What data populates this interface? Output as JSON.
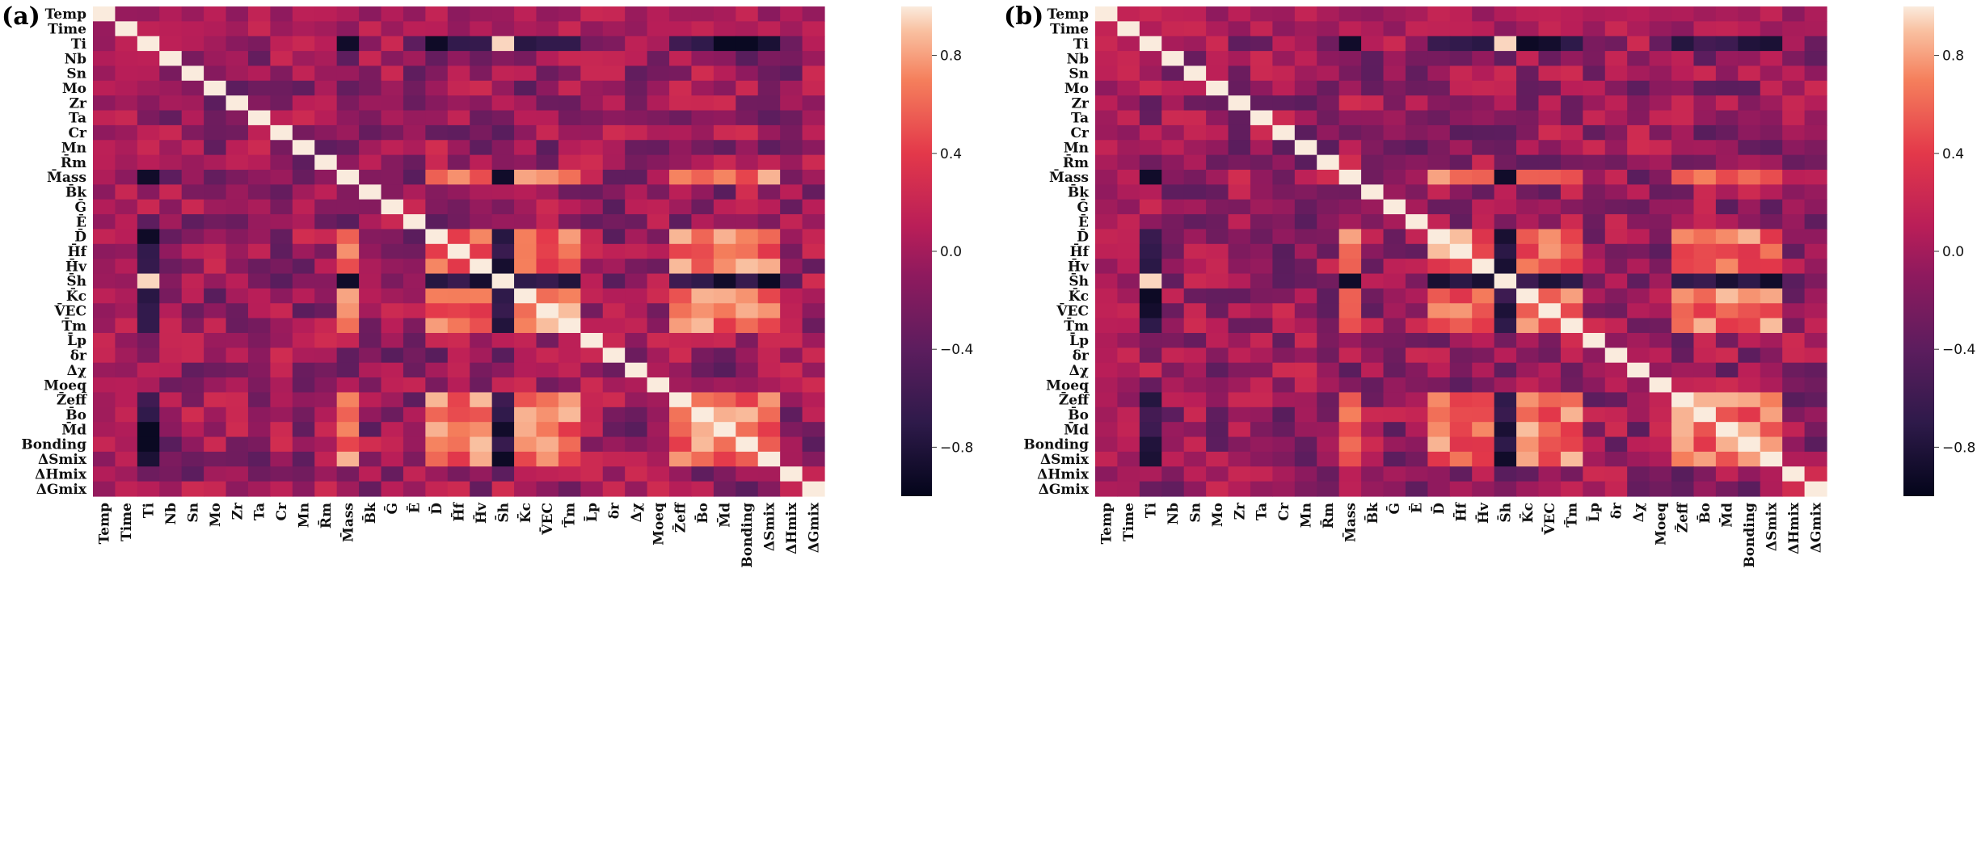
{
  "chart_data": [
    {
      "type": "heatmap",
      "panel_label": "(a)",
      "title": "",
      "rows": [
        "Temp",
        "Time",
        "Ti",
        "Nb",
        "Sn",
        "Mo",
        "Zr",
        "Ta",
        "Cr",
        "Mn",
        "R̄m",
        "M̄ass",
        "B̄k",
        "Ḡ",
        "Ē",
        "D̄",
        "H̄f",
        "H̄v",
        "S̄h",
        "K̄c",
        "V̄EC",
        "T̄m",
        "L̄p",
        "δr",
        "Δχ",
        "Moeq",
        "Z̄eff",
        "B̄o",
        "M̄d",
        "Bonding",
        "ΔSmix",
        "ΔHmix",
        "ΔGmix"
      ],
      "columns": [
        "Temp",
        "Time",
        "Ti",
        "Nb",
        "Sn",
        "Mo",
        "Zr",
        "Ta",
        "Cr",
        "Mn",
        "R̄m",
        "M̄ass",
        "B̄k",
        "Ḡ",
        "Ē",
        "D̄",
        "H̄f",
        "H̄v",
        "S̄h",
        "K̄c",
        "V̄EC",
        "T̄m",
        "L̄p",
        "δr",
        "Δχ",
        "Moeq",
        "Z̄eff",
        "B̄o",
        "M̄d",
        "Bonding",
        "ΔSmix",
        "ΔHmix",
        "ΔGmix"
      ],
      "value_range": [
        -1.0,
        1.0
      ],
      "colorbar_ticks": [
        "0.8",
        "0.4",
        "0.0",
        "−0.4",
        "−0.8"
      ],
      "matrix_note": "symmetric correlation matrix, diagonal = 1",
      "seed": 17
    },
    {
      "type": "heatmap",
      "panel_label": "(b)",
      "title": "",
      "rows": [
        "Temp",
        "Time",
        "Ti",
        "Nb",
        "Sn",
        "Mo",
        "Zr",
        "Ta",
        "Cr",
        "Mn",
        "R̄m",
        "M̄ass",
        "B̄k",
        "Ḡ",
        "Ē",
        "D̄",
        "H̄f",
        "H̄v",
        "S̄h",
        "K̄c",
        "V̄EC",
        "T̄m",
        "L̄p",
        "δr",
        "Δχ",
        "Moeq",
        "Z̄eff",
        "B̄o",
        "M̄d",
        "Bonding",
        "ΔSmix",
        "ΔHmix",
        "ΔGmix"
      ],
      "columns": [
        "Temp",
        "Time",
        "Ti",
        "Nb",
        "Sn",
        "Mo",
        "Zr",
        "Ta",
        "Cr",
        "Mn",
        "R̄m",
        "M̄ass",
        "B̄k",
        "Ḡ",
        "Ē",
        "D̄",
        "H̄f",
        "H̄v",
        "S̄h",
        "K̄c",
        "V̄EC",
        "T̄m",
        "L̄p",
        "δr",
        "Δχ",
        "Moeq",
        "Z̄eff",
        "B̄o",
        "M̄d",
        "Bonding",
        "ΔSmix",
        "ΔHmix",
        "ΔGmix"
      ],
      "value_range": [
        -1.0,
        1.0
      ],
      "colorbar_ticks": [
        "0.8",
        "0.4",
        "0.0",
        "−0.4",
        "−0.8"
      ],
      "matrix_note": "symmetric correlation matrix, diagonal = 1",
      "seed": 53
    }
  ]
}
